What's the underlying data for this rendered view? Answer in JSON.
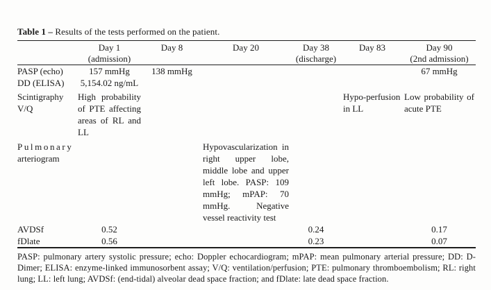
{
  "colors": {
    "background": "#fdfdfc",
    "text": "#1b1b1b",
    "rule": "#1d1d1d"
  },
  "title": {
    "bold": "Table 1 –",
    "rest": "Results of the tests performed on the patient."
  },
  "table": {
    "columns": [
      {
        "line1": "Day 1",
        "line2": "(admission)"
      },
      {
        "line1": "Day 8",
        "line2": ""
      },
      {
        "line1": "Day 20",
        "line2": ""
      },
      {
        "line1": "Day 38",
        "line2": "(discharge)"
      },
      {
        "line1": "Day 83",
        "line2": ""
      },
      {
        "line1": "Day 90",
        "line2": "(2nd admission)"
      }
    ],
    "rows": [
      {
        "label_lines": [
          "PASP (echo)"
        ],
        "day1": "157 mmHg",
        "day8": "138 mmHg",
        "day20": "",
        "day38": "",
        "day83": "",
        "day90": "67 mmHg"
      },
      {
        "label_lines": [
          "DD (ELISA)"
        ],
        "day1": "5,154.02 ng/mL",
        "day8": "",
        "day20": "",
        "day38": "",
        "day83": "",
        "day90": ""
      },
      {
        "label_lines": [
          "Scintigraphy",
          "V/Q"
        ],
        "day1": "High probability of PTE affecting areas of RL and LL",
        "day8": "",
        "day20": "",
        "day38": "",
        "day83": "Hypo-perfusion in LL",
        "day90": "Low probability of acute PTE"
      },
      {
        "label_lines": [
          "Pulmonary",
          "arteriogram"
        ],
        "day1": "",
        "day8": "",
        "day20": "Hypovascularization in right upper lobe, middle lobe and upper left lobe. PASP: 109 mmHg; mPAP: 70 mmHg. Negative vessel reactivity test",
        "day38": "",
        "day83": "",
        "day90": ""
      },
      {
        "label_lines": [
          "AVDSf"
        ],
        "day1": "0.52",
        "day8": "",
        "day20": "",
        "day38": "0.24",
        "day83": "",
        "day90": "0.17"
      },
      {
        "label_lines": [
          "fDlate"
        ],
        "day1": "0.56",
        "day8": "",
        "day20": "",
        "day38": "0.23",
        "day83": "",
        "day90": "0.07"
      }
    ],
    "footnote": "PASP: pulmonary artery systolic pressure; echo: Doppler echocardiogram; mPAP: mean pulmonary arterial pressure; DD: D-Dimer; ELISA: enzyme-linked immunosorbent assay; V/Q: ventilation/perfusion; PTE: pulmonary thromboembolism; RL: right lung; LL: left lung; AVDSf: (end-tidal) alveolar dead space fraction; and fDlate: late dead space fraction."
  }
}
